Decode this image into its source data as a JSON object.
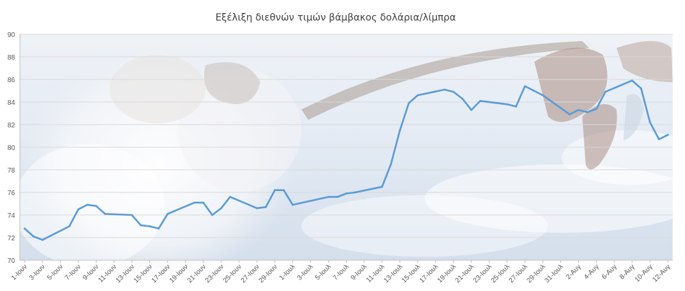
{
  "chart_data": {
    "type": "line",
    "title": "Εξέλιξη διεθνών τιμών βάμβακος δολάρια/λίμπρα",
    "xlabel": "",
    "ylabel": "",
    "ylim": [
      70,
      90
    ],
    "yticks": [
      70,
      72,
      74,
      76,
      78,
      80,
      82,
      84,
      86,
      88,
      90
    ],
    "grid": true,
    "legend": "none",
    "colors": {
      "line": "#5B9BD5",
      "grid": "#d9d9d9",
      "axis": "#bfbfbf"
    },
    "xtick_labels": [
      "1-Ιουν",
      "3-Ιουν",
      "5-Ιουν",
      "7-Ιουν",
      "9-Ιουν",
      "11-Ιουν",
      "13-Ιουν",
      "15-Ιουν",
      "17-Ιουν",
      "19-Ιουν",
      "21-Ιουν",
      "23-Ιουν",
      "25-Ιουν",
      "27-Ιουν",
      "29-Ιουν",
      "1-Ιουλ",
      "3-Ιουλ",
      "5-Ιουλ",
      "7-Ιουλ",
      "9-Ιουλ",
      "11-Ιουλ",
      "13-Ιουλ",
      "15-Ιουλ",
      "17-Ιουλ",
      "19-Ιουλ",
      "21-Ιουλ",
      "23-Ιουλ",
      "25-Ιουλ",
      "27-Ιουλ",
      "29-Ιουλ",
      "31-Ιουλ",
      "2-Αυγ",
      "4-Αυγ",
      "6-Αυγ",
      "8-Αυγ",
      "10-Αυγ",
      "12-Αυγ"
    ],
    "series": [
      {
        "x": [
          "1-Ιουν",
          "2-Ιουν",
          "3-Ιουν",
          "6-Ιουν",
          "7-Ιουν",
          "8-Ιουν",
          "9-Ιουν",
          "10-Ιουν",
          "13-Ιουν",
          "14-Ιουν",
          "15-Ιουν",
          "16-Ιουν",
          "17-Ιουν",
          "20-Ιουν",
          "21-Ιουν",
          "22-Ιουν",
          "23-Ιουν",
          "24-Ιουν",
          "27-Ιουν",
          "28-Ιουν",
          "29-Ιουν",
          "30-Ιουν",
          "1-Ιουλ",
          "5-Ιουλ",
          "6-Ιουλ",
          "7-Ιουλ",
          "8-Ιουλ",
          "11-Ιουλ",
          "12-Ιουλ",
          "13-Ιουλ",
          "14-Ιουλ",
          "15-Ιουλ",
          "18-Ιουλ",
          "19-Ιουλ",
          "20-Ιουλ",
          "21-Ιουλ",
          "22-Ιουλ",
          "25-Ιουλ",
          "26-Ιουλ",
          "27-Ιουλ",
          "28-Ιουλ",
          "29-Ιουλ",
          "1-Αυγ",
          "2-Αυγ",
          "3-Αυγ",
          "4-Αυγ",
          "5-Αυγ",
          "8-Αυγ",
          "9-Αυγ",
          "10-Αυγ",
          "11-Αυγ",
          "12-Αυγ"
        ],
        "values": [
          72.8,
          72.1,
          71.8,
          73.0,
          74.5,
          74.9,
          74.8,
          74.1,
          74.0,
          73.1,
          73.0,
          72.8,
          74.1,
          75.1,
          75.1,
          74.0,
          74.6,
          75.6,
          74.6,
          74.7,
          76.2,
          76.2,
          74.9,
          75.6,
          75.6,
          75.9,
          76.0,
          76.5,
          78.5,
          81.5,
          83.9,
          84.6,
          85.1,
          84.9,
          84.3,
          83.3,
          84.1,
          83.8,
          83.6,
          85.4,
          85.0,
          84.6,
          82.9,
          83.3,
          83.1,
          83.4,
          84.9,
          85.9,
          85.2,
          82.2,
          80.7,
          81.1
        ]
      }
    ]
  }
}
